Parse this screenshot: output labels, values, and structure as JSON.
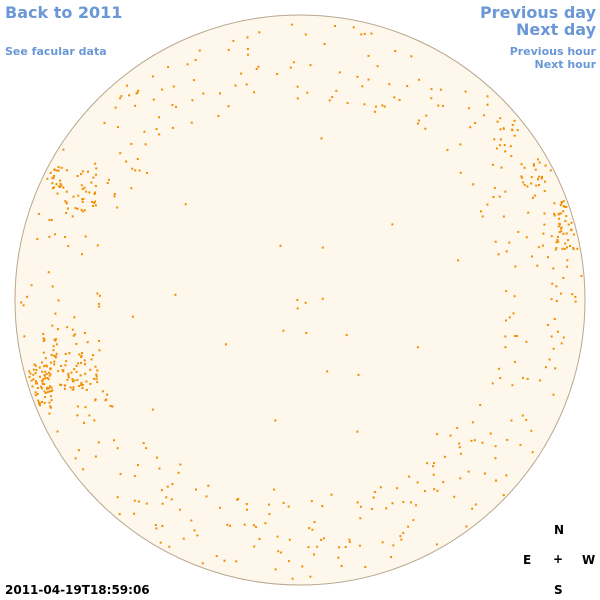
{
  "nav": {
    "back": "Back to 2011",
    "facular": "See facular data",
    "previous_day": "Previous day",
    "next_day": "Next day",
    "previous_hour": "Previous hour",
    "next_hour": "Next hour"
  },
  "compass": {
    "north": "N",
    "east": "E",
    "center": "+",
    "west": "W",
    "south": "S"
  },
  "timestamp": "2011-04-19T18:59:06",
  "colors": {
    "disk_fill": "#fef8ec",
    "disk_edge": "#b9a78d",
    "spot": "#f28c00"
  }
}
